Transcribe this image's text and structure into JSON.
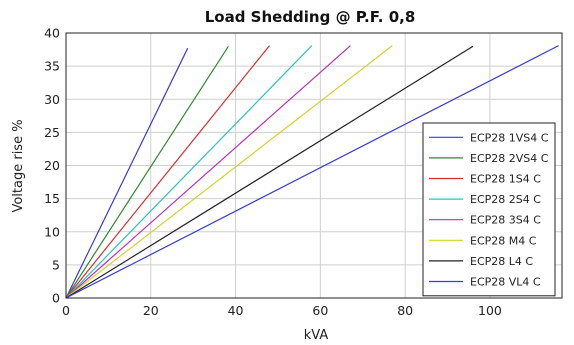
{
  "chart_data": {
    "type": "line",
    "title": "Load Shedding @ P.F. 0,8",
    "xlabel": "kVA",
    "ylabel": "Voltage rise %",
    "xlim": [
      0,
      117
    ],
    "ylim": [
      0,
      40
    ],
    "xticks": [
      "0",
      "20",
      "40",
      "60",
      "80",
      "100"
    ],
    "yticks": [
      "0",
      "5",
      "10",
      "15",
      "20",
      "25",
      "30",
      "35",
      "40"
    ],
    "grid": true,
    "legend_position": "lower-right",
    "series": [
      {
        "name": "ECP28 1VS4 C",
        "color": "#3a3ad6",
        "points": [
          [
            0,
            0
          ],
          [
            28.7,
            37.7
          ]
        ]
      },
      {
        "name": "ECP28 2VS4 C",
        "color": "#2f8a2f",
        "points": [
          [
            0,
            0
          ],
          [
            38.3,
            38.0
          ]
        ]
      },
      {
        "name": "ECP28 1S4 C",
        "color": "#d62f2f",
        "points": [
          [
            0,
            0
          ],
          [
            48.0,
            38.1
          ]
        ]
      },
      {
        "name": "ECP28 2S4 C",
        "color": "#2ac2c2",
        "points": [
          [
            0,
            0
          ],
          [
            58.0,
            38.1
          ]
        ]
      },
      {
        "name": "ECP28 3S4 C",
        "color": "#b832b8",
        "points": [
          [
            0,
            0
          ],
          [
            67.1,
            38.1
          ]
        ]
      },
      {
        "name": "ECP28 M4 C",
        "color": "#d3d32a",
        "points": [
          [
            0,
            0
          ],
          [
            77.0,
            38.1
          ]
        ]
      },
      {
        "name": "ECP28 L4 C",
        "color": "#222222",
        "points": [
          [
            0,
            0
          ],
          [
            96.0,
            38.0
          ]
        ]
      },
      {
        "name": "ECP28 VL4 C",
        "color": "#3a3ad6",
        "points": [
          [
            0,
            0
          ],
          [
            116.2,
            38.1
          ]
        ]
      }
    ]
  }
}
